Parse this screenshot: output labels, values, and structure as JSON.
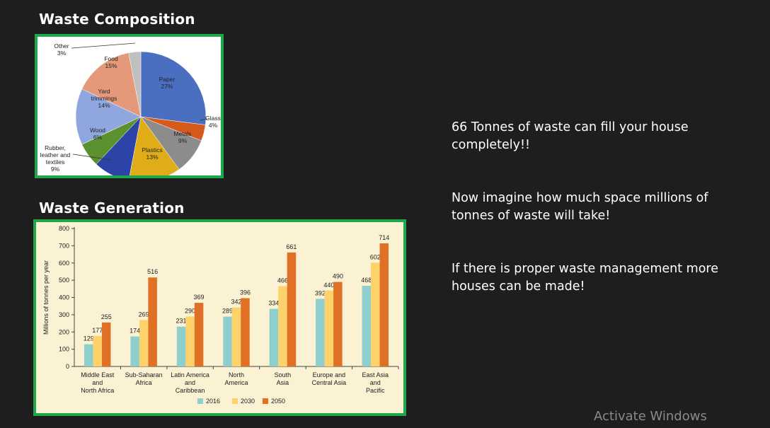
{
  "slide": {
    "waste_composition_title": "Waste Composition",
    "waste_generation_title": "Waste Generation",
    "messages": [
      "66 Tonnes of waste can fill your house completely!!",
      "Now imagine how much space millions of tonnes of waste will take!",
      "If there is proper waste management more houses can be made!"
    ],
    "watermark": "Activate Windows"
  },
  "colors": {
    "frame_border": "#1fa84b",
    "background": "#1e1e1e",
    "bar_panel": "#fbf1d3",
    "series_2016": "#8ecfce",
    "series_2030": "#fdd26a",
    "series_2050": "#e07026"
  },
  "chart_data": [
    {
      "type": "pie",
      "slices": [
        {
          "label": "Paper",
          "value": 27,
          "text": "27%",
          "color": "#4a6fc0"
        },
        {
          "label": "Glass",
          "value": 4,
          "text": "4%",
          "color": "#d55a1e"
        },
        {
          "label": "Metals",
          "value": 9,
          "text": "9%",
          "color": "#8c8c8c"
        },
        {
          "label": "Plastics",
          "value": 13,
          "text": "13%",
          "color": "#e0ad19"
        },
        {
          "label": "Rubber, leather and textiles",
          "value": 9,
          "text": "9%",
          "color": "#2c44a8"
        },
        {
          "label": "Wood",
          "value": 6,
          "text": "6%",
          "color": "#5c9130"
        },
        {
          "label": "Yard trimmings",
          "value": 14,
          "text": "14%",
          "color": "#8fa7de"
        },
        {
          "label": "Food",
          "value": 15,
          "text": "15%",
          "color": "#e49a7a"
        },
        {
          "label": "Other",
          "value": 3,
          "text": "3%",
          "color": "#c0c0c0"
        }
      ]
    },
    {
      "type": "bar",
      "categories": [
        [
          "Middle East",
          "and",
          "North Africa"
        ],
        [
          "Sub-Saharan",
          "Africa"
        ],
        [
          "Latin America",
          "and",
          "Caribbean"
        ],
        [
          "North",
          "America"
        ],
        [
          "South",
          "Asia"
        ],
        [
          "Europe and",
          "Central Asia"
        ],
        [
          "East Asia",
          "and",
          "Pacific"
        ]
      ],
      "series": [
        {
          "name": "2016",
          "values": [
            129,
            174,
            231,
            289,
            334,
            392,
            468
          ]
        },
        {
          "name": "2030",
          "values": [
            177,
            269,
            290,
            342,
            466,
            440,
            602
          ]
        },
        {
          "name": "2050",
          "values": [
            255,
            516,
            369,
            396,
            661,
            490,
            714
          ]
        }
      ],
      "ylabel": "Millions of tonnes per year",
      "ylim": [
        0,
        800
      ],
      "yticks": [
        0,
        100,
        200,
        300,
        400,
        500,
        600,
        700,
        800
      ],
      "legend": "bottom"
    }
  ]
}
